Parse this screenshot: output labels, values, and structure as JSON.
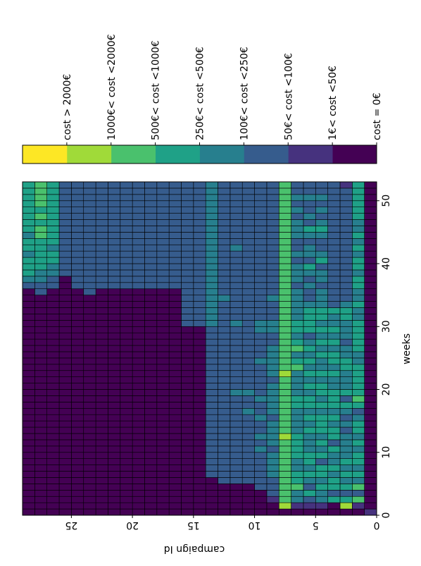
{
  "chart_data": {
    "type": "heatmap",
    "title": "",
    "xlabel": "weeks",
    "ylabel": "campaign Id",
    "x_ticks": [
      "0",
      "10",
      "20",
      "30",
      "40",
      "50"
    ],
    "y_ticks": [
      "0",
      "5",
      "10",
      "15",
      "20",
      "25"
    ],
    "xlim": [
      0,
      53
    ],
    "ylim": [
      0,
      29
    ],
    "colorbar": {
      "colormap": "viridis",
      "labels": [
        "cost = 0€",
        "1€< cost <50€",
        "50€< cost <100€",
        "100€< cost <250€",
        "250€< cost <500€",
        "500€< cost <1000€",
        "1000€< cost <2000€",
        "cost > 2000€"
      ]
    },
    "grid_levels": [
      "10000000000000000000000000000000000000000000000000000",
      "01525343443434432454444433444443343344344343433444444",
      "06424343433332323424333443323334432222222222222222221",
      "00424434334244343444334344343433422222222222222222222",
      "01334344243434443434434334343434433323324322343232322",
      "01242343443334343443434343432444432232342332342322322",
      "01335443344443333443333543543443333323332322333232322",
      "06555555555565555555556555555555555555555555555555555",
      "00122233332333323333323333322332223222222222222222222",
      "00002222223232232232222232222332222222222222222222222",
      "00000222222222223223222222222222222222222222222222222",
      "00000222222222222223222222222232222222222232222222222",
      "00000222222222222222222222222222223222222222222222222",
      "00000022222222222222222222222233333333333333333333333",
      "00000000000000000000000000000022222222222222222222222",
      "00000000000000000000000000000022222222222222222222222",
      "00000000000000000000000000000000000022222222222222222",
      "00000000000000000000000000000000000022222222222222222",
      "00000000000000000000000000000000000022222222222222222",
      "00000000000000000000000000000000000022222222222222222",
      "00000000000000000000000000000000000022222222222222222",
      "00000000000000000000000000000000000022222222222222222",
      "00000000000000000000000000000000000022222222222222222",
      "00000000000000000000000000000000000222222222222222222",
      "00000000000000000000000000000000000022222222222222222",
      "00000000000000000000000000000000000000222222222222222",
      "00000000000000000000000000000000000022334434444444444",
      "00000000000000000000000000000000000223344444554545555",
      "00000000000000000000000000000000000023444344344444444"
    ]
  }
}
